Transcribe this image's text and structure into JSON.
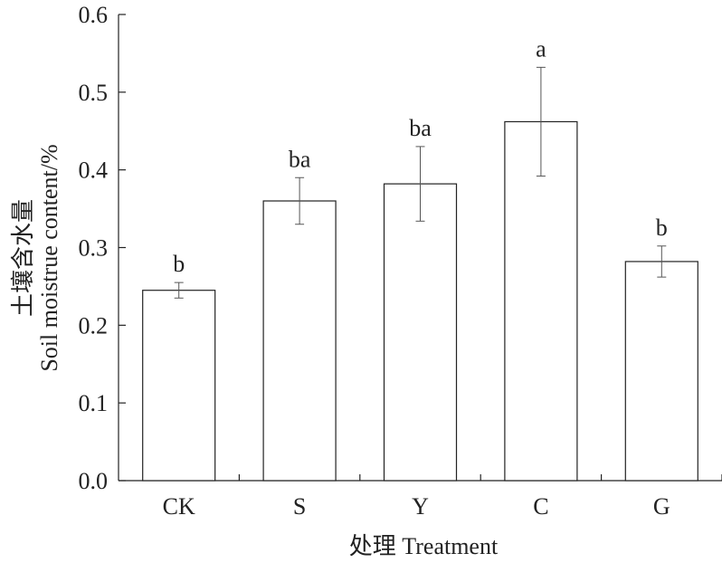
{
  "chart_data": {
    "type": "bar",
    "categories": [
      "CK",
      "S",
      "Y",
      "C",
      "G"
    ],
    "values": [
      0.245,
      0.36,
      0.382,
      0.462,
      0.282
    ],
    "error": [
      0.01,
      0.03,
      0.048,
      0.07,
      0.02
    ],
    "significance": [
      "b",
      "ba",
      "ba",
      "a",
      "b"
    ],
    "xlabel": "处理 Treatment",
    "ylabel_line1": "土壤含水量",
    "ylabel_line2": "Soil moistrue content/%",
    "ylim": [
      0,
      0.6
    ],
    "yticks": [
      "0.0",
      "0.1",
      "0.2",
      "0.3",
      "0.4",
      "0.5",
      "0.6"
    ],
    "grid": false,
    "bar_fill": "#ffffff",
    "bar_stroke": "#222222"
  }
}
